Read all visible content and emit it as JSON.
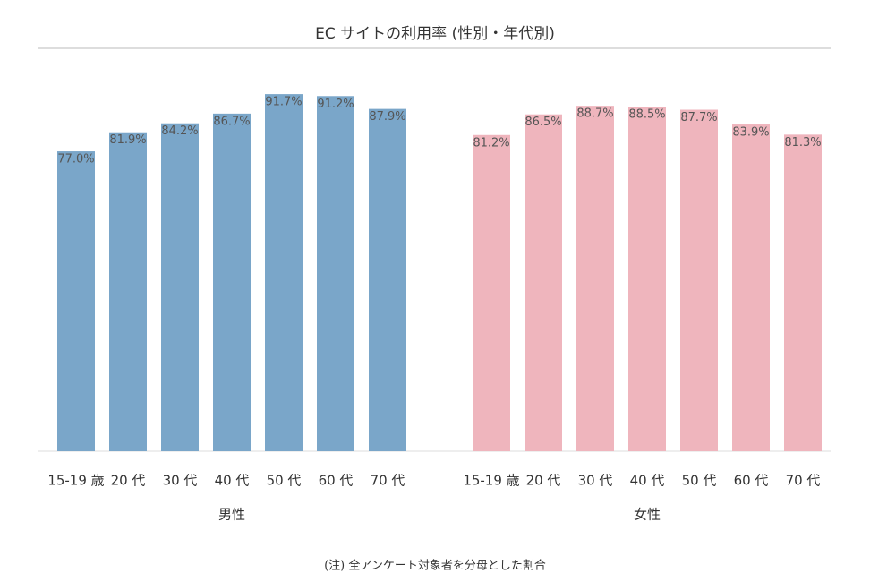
{
  "chart_data": {
    "type": "bar",
    "title": "EC サイトの利用率 (性別・年代別)",
    "note": "(注) 全アンケート対象者を分母とした割合",
    "ylim": [
      0,
      100
    ],
    "groups": [
      {
        "name": "男性",
        "color": "#7aa6c9",
        "categories": [
          "15-19 歳",
          "20 代",
          "30 代",
          "40 代",
          "50 代",
          "60 代",
          "70 代"
        ],
        "values": [
          77.0,
          81.9,
          84.2,
          86.7,
          91.7,
          91.2,
          87.9
        ],
        "value_labels": [
          "77.0%",
          "81.9%",
          "84.2%",
          "86.7%",
          "91.7%",
          "91.2%",
          "87.9%"
        ]
      },
      {
        "name": "女性",
        "color": "#efb5bd",
        "categories": [
          "15-19 歳",
          "20 代",
          "30 代",
          "40 代",
          "50 代",
          "60 代",
          "70 代"
        ],
        "values": [
          81.2,
          86.5,
          88.7,
          88.5,
          87.7,
          83.9,
          81.3
        ],
        "value_labels": [
          "81.2%",
          "86.5%",
          "88.7%",
          "88.5%",
          "87.7%",
          "83.9%",
          "81.3%"
        ]
      }
    ]
  }
}
